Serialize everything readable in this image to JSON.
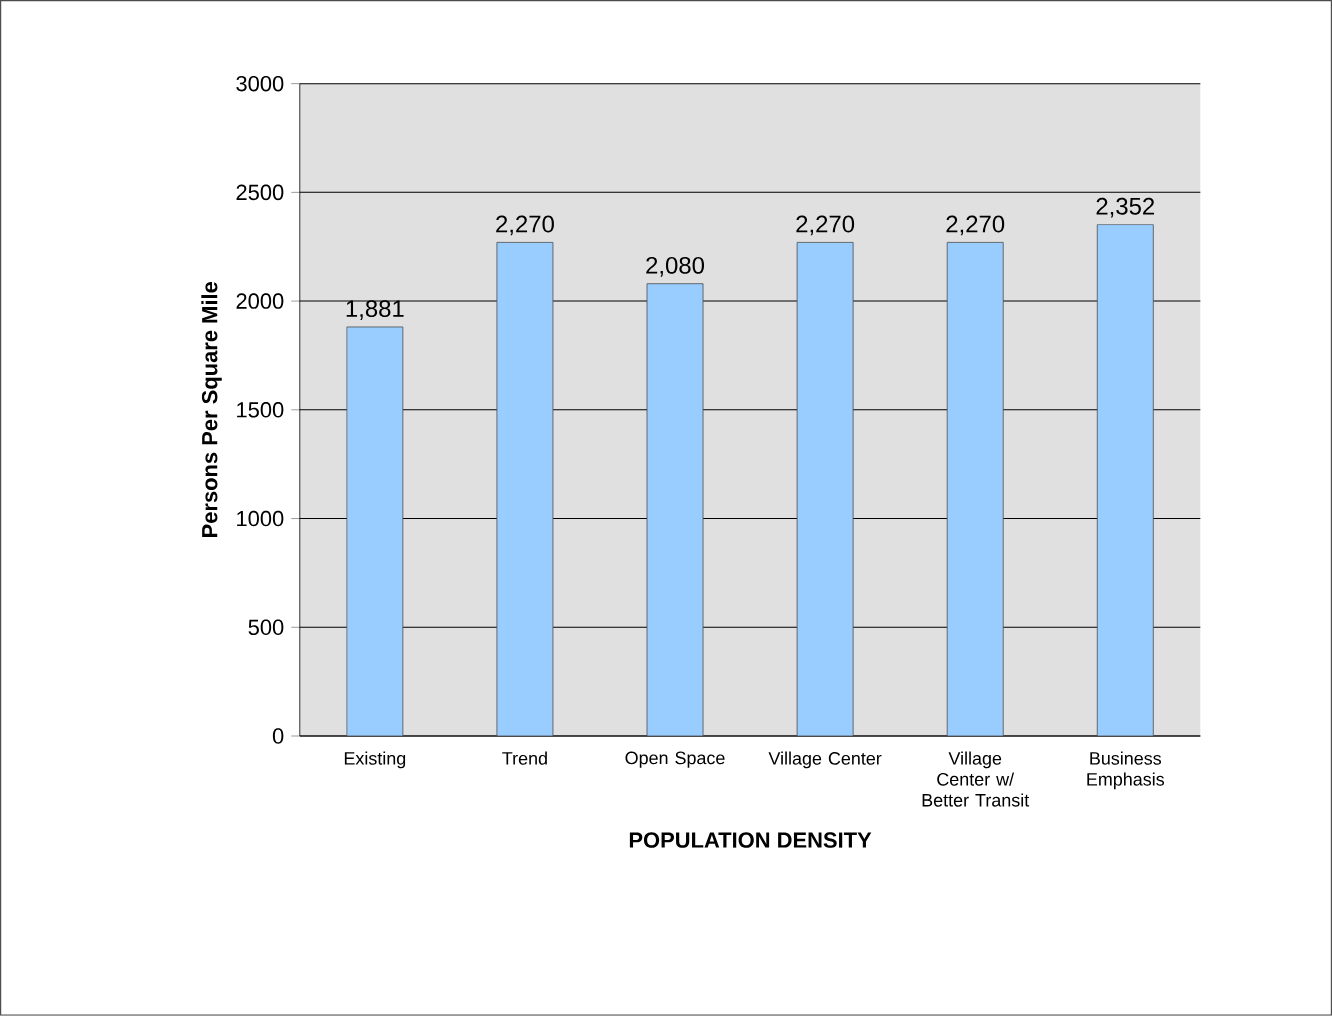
{
  "chart_data": {
    "type": "bar",
    "xlabel": "POPULATION DENSITY",
    "ylabel": "Persons Per Square Mile",
    "categories": [
      "Existing",
      "Trend",
      "Open Space",
      "Village Center",
      "Village Center w/ Better Transit",
      "Business Emphasis"
    ],
    "values": [
      1881,
      2270,
      2080,
      2270,
      2270,
      2352
    ],
    "value_labels": [
      "1,881",
      "2,270",
      "2,080",
      "2,270",
      "2,270",
      "2,352"
    ],
    "color": "#99ccff",
    "ylim": [
      0,
      3000
    ],
    "yticks": [
      0,
      500,
      1000,
      1500,
      2000,
      2500,
      3000
    ],
    "grid": "y"
  }
}
